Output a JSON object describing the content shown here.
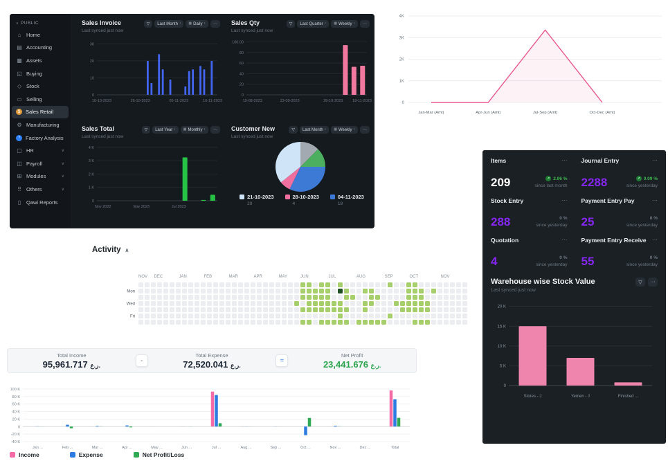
{
  "dashboard": {
    "sidebar": {
      "header": "PUBLIC",
      "items": [
        {
          "label": "Home",
          "icon": "home-icon",
          "glyph": "⌂"
        },
        {
          "label": "Accounting",
          "icon": "accounting-icon",
          "glyph": "▤"
        },
        {
          "label": "Assets",
          "icon": "assets-icon",
          "glyph": "▦"
        },
        {
          "label": "Buying",
          "icon": "buying-icon",
          "glyph": "◱"
        },
        {
          "label": "Stock",
          "icon": "stock-icon",
          "glyph": "◇"
        },
        {
          "label": "Selling",
          "icon": "selling-icon",
          "glyph": "▭"
        },
        {
          "label": "Sales Retail",
          "icon": "sales-retail-icon",
          "glyph": "$",
          "badge": "#e09c3c",
          "active": true
        },
        {
          "label": "Manufacturing",
          "icon": "manufacturing-icon",
          "glyph": "⚙"
        },
        {
          "label": "Factory Analysis",
          "icon": "factory-analysis-icon",
          "glyph": "◔",
          "badge": "#2f81f7"
        },
        {
          "label": "HR",
          "icon": "hr-icon",
          "glyph": "▢",
          "chevron": true
        },
        {
          "label": "Payroll",
          "icon": "payroll-icon",
          "glyph": "◫",
          "chevron": true
        },
        {
          "label": "Modules",
          "icon": "modules-icon",
          "glyph": "⊞",
          "chevron": true
        },
        {
          "label": "Others",
          "icon": "others-icon",
          "glyph": "⠿",
          "chevron": true
        },
        {
          "label": "Qawi Reports",
          "icon": "qawi-reports-icon",
          "glyph": "▯"
        }
      ]
    },
    "chart_cards": [
      {
        "id": "invoice",
        "title": "Sales Invoice",
        "subtitle": "Last synced just now",
        "filters": [
          "Last Month",
          "Daily"
        ]
      },
      {
        "id": "qty",
        "title": "Sales Qty",
        "subtitle": "Last synced just now",
        "filters": [
          "Last Quarter",
          "Weekly"
        ]
      },
      {
        "id": "total",
        "title": "Sales Total",
        "subtitle": "Last synced just now",
        "filters": [
          "Last Year",
          "Monthly"
        ]
      },
      {
        "id": "customer",
        "title": "Customer New",
        "subtitle": "Last synced just now",
        "filters": [
          "Last Month",
          "Weekly"
        ]
      }
    ]
  },
  "number_cards": [
    {
      "title": "Items",
      "value": "209",
      "value_color": "#ffffff",
      "pct": "2.96 %",
      "pct_color": "#3fb950",
      "badge": true,
      "sub": "since last month"
    },
    {
      "title": "Journal Entry",
      "value": "2288",
      "value_color": "#8526f0",
      "pct": "0.09 %",
      "pct_color": "#3fb950",
      "badge": true,
      "sub": "since yesterday"
    },
    {
      "title": "Stock Entry",
      "value": "288",
      "value_color": "#8526f0",
      "pct": "0 %",
      "pct_color": "#6e7781",
      "badge": false,
      "sub": "since yesterday"
    },
    {
      "title": "Payment Entry Pay",
      "value": "25",
      "value_color": "#8526f0",
      "pct": "0 %",
      "pct_color": "#6e7781",
      "badge": false,
      "sub": "since yesterday"
    },
    {
      "title": "Quotation",
      "value": "4",
      "value_color": "#8526f0",
      "pct": "0 %",
      "pct_color": "#6e7781",
      "badge": false,
      "sub": "since yesterday"
    },
    {
      "title": "Payment Entry Receive",
      "value": "55",
      "value_color": "#8526f0",
      "pct": "0 %",
      "pct_color": "#6e7781",
      "badge": false,
      "sub": "since yesterday"
    }
  ],
  "warehouse_panel": {
    "title": "Warehouse wise Stock Value",
    "subtitle": "Last synced just now"
  },
  "activity": {
    "title": "Activity",
    "collapse_icon": "chevron-up"
  },
  "totals_bar": {
    "items": [
      {
        "label": "Total Income",
        "value": "95,961.717",
        "currency": "ر.ع.",
        "color": "#1f2937"
      },
      {
        "label": "Total Expense",
        "value": "72,520.041",
        "currency": "ر.ع.",
        "color": "#1f2937"
      },
      {
        "label": "Net Profit",
        "value": "23,441.676",
        "currency": "ر.ع.",
        "color": "#2ca44e"
      }
    ],
    "operators": [
      "-",
      "="
    ]
  },
  "chart_data": {
    "sales_invoice": {
      "type": "bar",
      "title": "Sales Invoice",
      "color": "#4365f0",
      "ylim": [
        0,
        33
      ],
      "yticks": [
        {
          "v": 0,
          "label": "0"
        },
        {
          "v": 10,
          "label": "10"
        },
        {
          "v": 20,
          "label": "20"
        },
        {
          "v": 30,
          "label": "30"
        }
      ],
      "xlabels": [
        "16-10-2023",
        "26-10-2023",
        "05-11-2023",
        "16-11-2023"
      ],
      "xpos": [
        0.04,
        0.36,
        0.68,
        0.96
      ],
      "values": [
        0,
        0,
        0,
        0,
        0,
        0,
        0,
        0,
        0,
        0,
        0,
        0,
        0,
        20,
        7,
        0,
        24,
        15,
        0,
        9,
        0,
        0,
        0,
        5,
        14,
        15,
        0,
        17,
        15,
        0,
        20,
        0
      ]
    },
    "sales_qty": {
      "type": "bar",
      "title": "Sales Qty",
      "color": "#f1799f",
      "ylim": [
        0,
        106
      ],
      "yticks": [
        {
          "v": 0,
          "label": "0"
        },
        {
          "v": 20,
          "label": "20"
        },
        {
          "v": 40,
          "label": "40"
        },
        {
          "v": 60,
          "label": "60"
        },
        {
          "v": 80,
          "label": "80"
        },
        {
          "v": 100,
          "label": "100.00"
        }
      ],
      "xlabels": [
        "19-08-2023",
        "23-09-2023",
        "28-10-2023",
        "18-11-2023"
      ],
      "xpos": [
        0.05,
        0.36,
        0.72,
        0.96
      ],
      "values": [
        0,
        0,
        0,
        0,
        0,
        0,
        0,
        0,
        0,
        0,
        0,
        94,
        53,
        55
      ]
    },
    "sales_total": {
      "type": "bar",
      "title": "Sales Total",
      "color": "#27c346",
      "ylim": [
        0,
        4200
      ],
      "yticks": [
        {
          "v": 0,
          "label": "0"
        },
        {
          "v": 1000,
          "label": "1 K"
        },
        {
          "v": 2000,
          "label": "2 K"
        },
        {
          "v": 3000,
          "label": "3 K"
        },
        {
          "v": 4000,
          "label": "4 K"
        }
      ],
      "xlabels": [
        "Nov 2022",
        "Mar 2023",
        "Jul 2023"
      ],
      "xpos": [
        0.05,
        0.37,
        0.68
      ],
      "values": [
        0,
        0,
        0,
        0,
        0,
        0,
        0,
        0,
        0,
        3250,
        0,
        60,
        450
      ]
    },
    "customer_new": {
      "type": "pie",
      "title": "Customer New",
      "slices": [
        {
          "label": "",
          "value": 7,
          "color": "#a2a9b0"
        },
        {
          "label": "",
          "value": 7,
          "color": "#4caf5f"
        },
        {
          "label": "04-11-2023",
          "value": 18,
          "color": "#3c7ad6"
        },
        {
          "label": "28-10-2023",
          "value": 4,
          "color": "#ef6f9f"
        },
        {
          "label": "21-10-2023",
          "value": 20,
          "color": "#cfe4f6"
        }
      ],
      "legend": [
        {
          "label": "21-10-2023",
          "value": "20",
          "color": "#cfe4f6"
        },
        {
          "label": "28-10-2023",
          "value": "4",
          "color": "#ef6f9f"
        },
        {
          "label": "04-11-2023",
          "value": "18",
          "color": "#3c7ad6"
        }
      ]
    },
    "quarterly_amount": {
      "type": "line",
      "color": "#e7598f",
      "x": [
        "Jan-Mar (Amt)",
        "Apr-Jun (Amt)",
        "Jul-Sep (Amt)",
        "Oct-Dec (Amt)"
      ],
      "values": [
        0,
        0,
        3350,
        0
      ],
      "xpos": [
        0.09,
        0.315,
        0.54,
        0.765
      ],
      "ylim": [
        0,
        4000
      ],
      "yticks": [
        {
          "v": 0,
          "label": "0"
        },
        {
          "v": 1000,
          "label": "1K"
        },
        {
          "v": 2000,
          "label": "2K"
        },
        {
          "v": 3000,
          "label": "3K"
        },
        {
          "v": 4000,
          "label": "4K"
        }
      ]
    },
    "warehouse_stock": {
      "type": "bar",
      "title": "Warehouse wise Stock Value",
      "color": "#ef85ac",
      "categories": [
        "Stores - J",
        "Yemen - J",
        "Finished ..."
      ],
      "values": [
        15000,
        7000,
        800
      ],
      "ylim": [
        0,
        21000
      ],
      "yticks": [
        {
          "v": 0,
          "label": "0"
        },
        {
          "v": 5000,
          "label": "5 K"
        },
        {
          "v": 10000,
          "label": "10 K"
        },
        {
          "v": 15000,
          "label": "15 K"
        },
        {
          "v": 20000,
          "label": "20 K"
        }
      ]
    },
    "activity_heatmap": {
      "type": "heatmap",
      "months": [
        "NOV",
        "DEC",
        "JAN",
        "FEB",
        "MAR",
        "APR",
        "MAY",
        "JUN",
        "JUL",
        "AUG",
        "SEP",
        "OCT",
        "NOV"
      ],
      "month_week": [
        0,
        2.5,
        6.5,
        10.5,
        14.5,
        18.5,
        22.5,
        26,
        30.5,
        35,
        39.5,
        43.5,
        48.5
      ],
      "day_labels": [
        {
          "label": "Mon",
          "row": 1
        },
        {
          "label": "Wed",
          "row": 3
        },
        {
          "label": "Fri",
          "row": 5
        }
      ],
      "levels": {
        "0": "#ebedf0",
        "1": "#a6ce6b",
        "2": "#69af45",
        "3": "#1f4f23"
      },
      "weeks": [
        "0000000",
        "0000000",
        "0000000",
        "0000000",
        "0000000",
        "0000000",
        "0000000",
        "0000000",
        "0000000",
        "0000000",
        "0000000",
        "0000000",
        "0000000",
        "0000000",
        "0000000",
        "0000000",
        "0000000",
        "0000000",
        "0000000",
        "0000000",
        "0000000",
        "0000000",
        "0000000",
        "0000000",
        "0000000",
        "0001000",
        "1110101",
        "1111101",
        "0111100",
        "1111101",
        "1111101",
        "0001101",
        "1301111",
        "0110101",
        "0010000",
        "0000001",
        "0101101",
        "0111001",
        "0010001",
        "0000001",
        "1000010",
        "0001000",
        "0001100",
        "1111100",
        "1111101",
        "0111101",
        "0001101",
        "0100000",
        "0000000",
        "0000000",
        "0000000",
        "0000000",
        "0000000"
      ]
    },
    "profit_loss": {
      "type": "bar",
      "categories": [
        "Jan ...",
        "Feb ...",
        "Mar ...",
        "Apr ...",
        "May ...",
        "Jun ...",
        "Jul ...",
        "Aug ...",
        "Sep ...",
        "Oct ...",
        "Nov ...",
        "Dec ...",
        "Total"
      ],
      "series": [
        {
          "name": "Income",
          "color": "#f46ba5",
          "values": [
            0.4,
            0,
            0.3,
            0,
            0.2,
            0.8,
            93,
            0.8,
            0,
            0,
            0.3,
            0,
            96
          ]
        },
        {
          "name": "Expense",
          "color": "#2f7ce0",
          "values": [
            1,
            5,
            1.5,
            3,
            0,
            0,
            84,
            0.5,
            0.5,
            -23,
            2,
            0,
            72.5
          ]
        },
        {
          "name": "Net Profit/Loss",
          "color": "#2faa52",
          "values": [
            0.3,
            -4.5,
            0.8,
            -2,
            0,
            0.5,
            9,
            0.3,
            0,
            23,
            1,
            0,
            23.4
          ]
        }
      ],
      "ylim": [
        -40,
        100
      ],
      "yticks": [
        {
          "v": 100,
          "label": "100 K"
        },
        {
          "v": 80,
          "label": "80 K"
        },
        {
          "v": 60,
          "label": "60 K"
        },
        {
          "v": 40,
          "label": "40 K"
        },
        {
          "v": 20,
          "label": "20 K"
        },
        {
          "v": 0,
          "label": "0"
        },
        {
          "v": -20,
          "label": "-20 K"
        },
        {
          "v": -40,
          "label": "-40 K"
        }
      ]
    }
  },
  "icons": {
    "filter": "▽",
    "calendar": "▦",
    "dots": "···",
    "dropdown": "↕",
    "chevron_down": "∨",
    "chevron_up": "∧",
    "trend_up": "↗"
  }
}
